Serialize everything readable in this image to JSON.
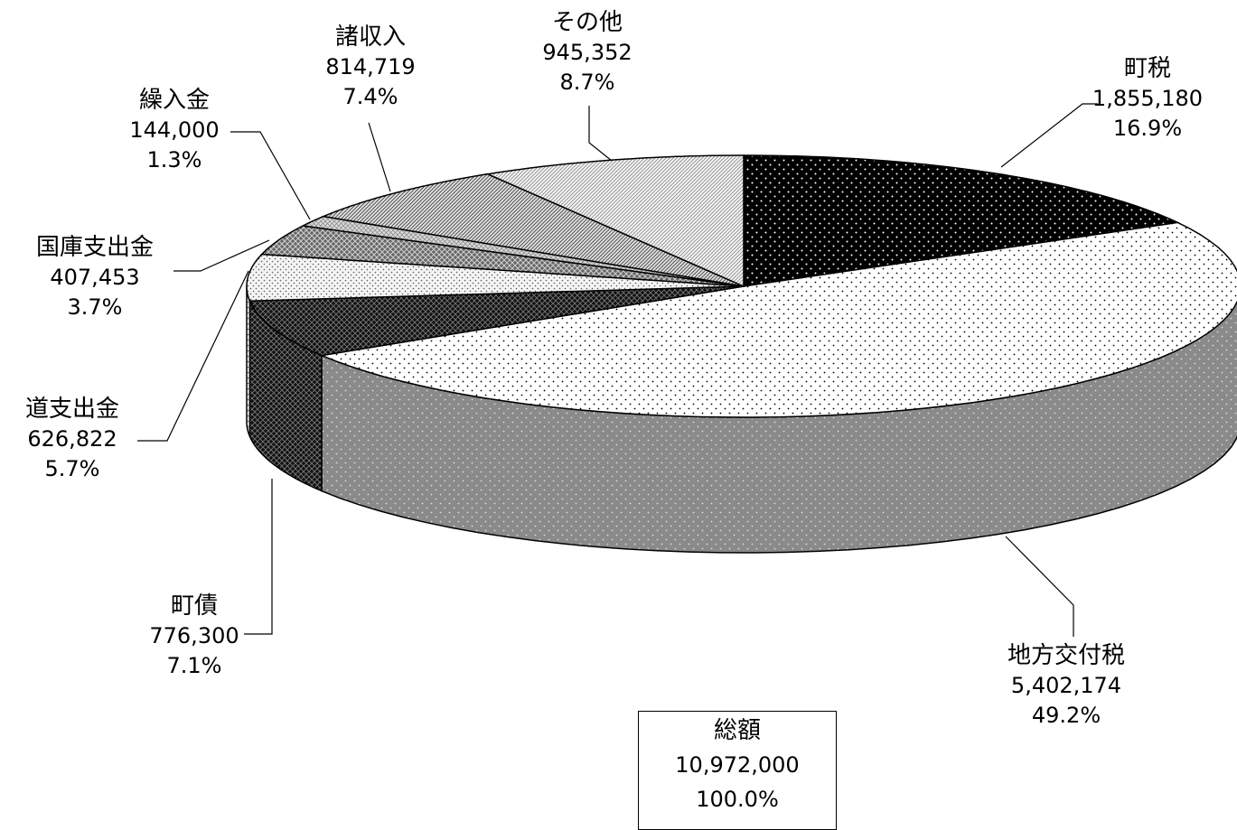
{
  "chart_data": {
    "type": "pie",
    "style": "3d-exploded-none",
    "slices": [
      {
        "key": "choze",
        "label": "町税",
        "value": 1855180,
        "percent": "16.9%",
        "value_text": "1,855,180",
        "pattern": "black-dots"
      },
      {
        "key": "chiho",
        "label": "地方交付税",
        "value": 5402174,
        "percent": "49.2%",
        "value_text": "5,402,174",
        "pattern": "white-dots"
      },
      {
        "key": "chosai",
        "label": "町債",
        "value": 776300,
        "percent": "7.1%",
        "value_text": "776,300",
        "pattern": "black-crosshatch"
      },
      {
        "key": "doshi",
        "label": "道支出金",
        "value": 626822,
        "percent": "5.7%",
        "value_text": "626,822",
        "pattern": "light-dots"
      },
      {
        "key": "kokko",
        "label": "国庫支出金",
        "value": 407453,
        "percent": "3.7%",
        "value_text": "407,453",
        "pattern": "grey-checker"
      },
      {
        "key": "kuriire",
        "label": "繰入金",
        "value": 144000,
        "percent": "1.3%",
        "value_text": "144,000",
        "pattern": "light-checker"
      },
      {
        "key": "shoshu",
        "label": "諸収入",
        "value": 814719,
        "percent": "7.4%",
        "value_text": "814,719",
        "pattern": "dense-diagonal"
      },
      {
        "key": "sonota",
        "label": "その他",
        "value": 945352,
        "percent": "8.7%",
        "value_text": "945,352",
        "pattern": "light-diagonal"
      }
    ],
    "total": {
      "label": "総額",
      "value_text": "10,972,000",
      "percent": "100.0%"
    }
  }
}
